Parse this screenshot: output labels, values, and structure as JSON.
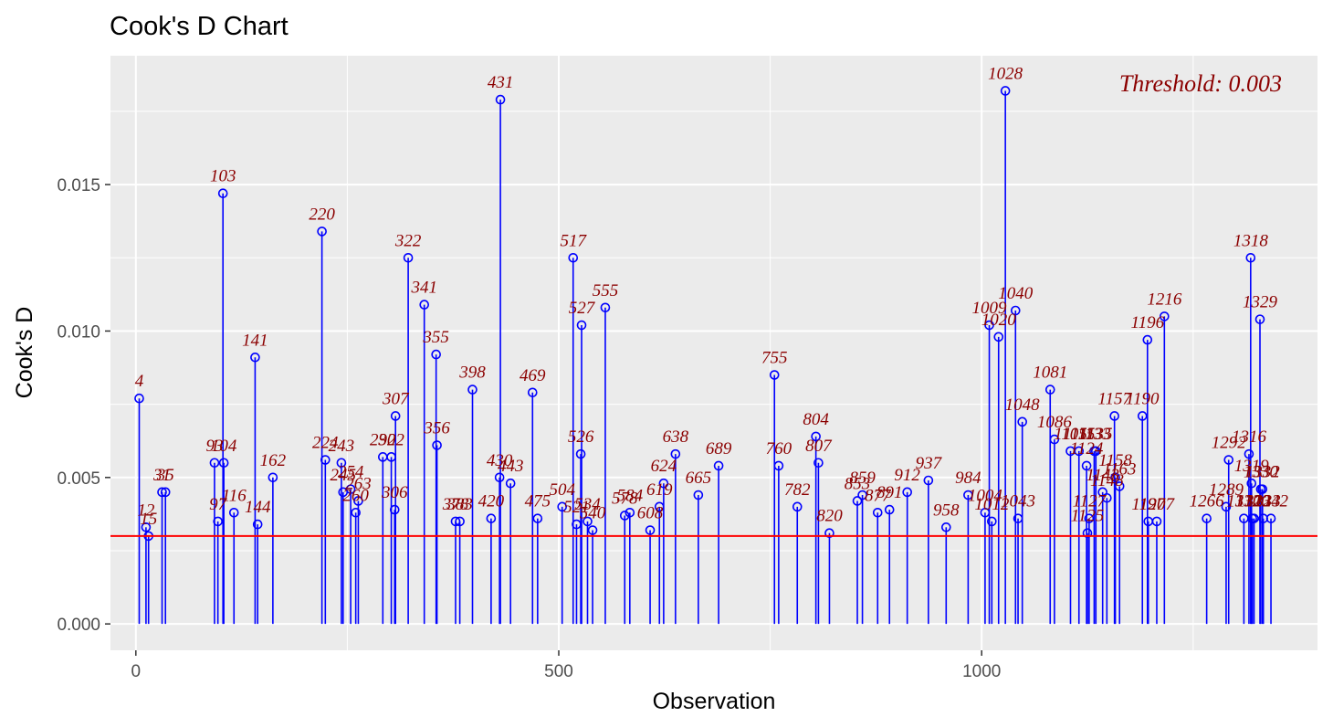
{
  "chart_data": {
    "type": "scatter",
    "title": "Cook's D Chart",
    "xlabel": "Observation",
    "ylabel": "Cook's D",
    "xlim": [
      -30,
      1397
    ],
    "ylim": [
      -0.0009,
      0.0194
    ],
    "x_ticks": [
      0,
      500,
      1000
    ],
    "x_tick_labels": [
      "0",
      "500",
      "1000"
    ],
    "y_ticks": [
      0,
      0.005,
      0.01,
      0.015
    ],
    "y_tick_labels": [
      "0.000",
      "0.005",
      "0.010",
      "0.015"
    ],
    "grid": true,
    "legend": "none",
    "threshold": 0.003,
    "threshold_label": "Threshold: 0.003",
    "colors": {
      "stem": "#0000ff",
      "threshold": "#ff0000",
      "label": "#8b0000",
      "panel": "#ebebeb",
      "grid": "#ffffff"
    },
    "labeled_points": [
      {
        "x": 4,
        "y": 0.0077,
        "label": "4"
      },
      {
        "x": 12,
        "y": 0.0033,
        "label": "12"
      },
      {
        "x": 15,
        "y": 0.003,
        "label": "15"
      },
      {
        "x": 31,
        "y": 0.0045,
        "label": "31"
      },
      {
        "x": 35,
        "y": 0.0045,
        "label": "35"
      },
      {
        "x": 93,
        "y": 0.0055,
        "label": "93"
      },
      {
        "x": 97,
        "y": 0.0035,
        "label": "97"
      },
      {
        "x": 103,
        "y": 0.0147,
        "label": "103"
      },
      {
        "x": 104,
        "y": 0.0055,
        "label": "104"
      },
      {
        "x": 116,
        "y": 0.0038,
        "label": "116"
      },
      {
        "x": 141,
        "y": 0.0091,
        "label": "141"
      },
      {
        "x": 144,
        "y": 0.0034,
        "label": "144"
      },
      {
        "x": 162,
        "y": 0.005,
        "label": "162"
      },
      {
        "x": 220,
        "y": 0.0134,
        "label": "220"
      },
      {
        "x": 224,
        "y": 0.0056,
        "label": "224"
      },
      {
        "x": 243,
        "y": 0.0055,
        "label": "243"
      },
      {
        "x": 245,
        "y": 0.0045,
        "label": "245"
      },
      {
        "x": 254,
        "y": 0.0046,
        "label": "254"
      },
      {
        "x": 263,
        "y": 0.0042,
        "label": "263"
      },
      {
        "x": 260,
        "y": 0.0038,
        "label": "260"
      },
      {
        "x": 292,
        "y": 0.0057,
        "label": "292"
      },
      {
        "x": 302,
        "y": 0.0057,
        "label": "302"
      },
      {
        "x": 306,
        "y": 0.0039,
        "label": "306"
      },
      {
        "x": 307,
        "y": 0.0071,
        "label": "307"
      },
      {
        "x": 322,
        "y": 0.0125,
        "label": "322"
      },
      {
        "x": 341,
        "y": 0.0109,
        "label": "341"
      },
      {
        "x": 355,
        "y": 0.0092,
        "label": "355"
      },
      {
        "x": 356,
        "y": 0.0061,
        "label": "356"
      },
      {
        "x": 378,
        "y": 0.0035,
        "label": "378"
      },
      {
        "x": 383,
        "y": 0.0035,
        "label": "383"
      },
      {
        "x": 398,
        "y": 0.008,
        "label": "398"
      },
      {
        "x": 420,
        "y": 0.0036,
        "label": "420"
      },
      {
        "x": 430,
        "y": 0.005,
        "label": "430"
      },
      {
        "x": 431,
        "y": 0.0179,
        "label": "431"
      },
      {
        "x": 443,
        "y": 0.0048,
        "label": "443"
      },
      {
        "x": 469,
        "y": 0.0079,
        "label": "469"
      },
      {
        "x": 475,
        "y": 0.0036,
        "label": "475"
      },
      {
        "x": 504,
        "y": 0.004,
        "label": "504"
      },
      {
        "x": 517,
        "y": 0.0125,
        "label": "517"
      },
      {
        "x": 521,
        "y": 0.0034,
        "label": "521"
      },
      {
        "x": 526,
        "y": 0.0058,
        "label": "526"
      },
      {
        "x": 527,
        "y": 0.0102,
        "label": "527"
      },
      {
        "x": 534,
        "y": 0.0035,
        "label": "534"
      },
      {
        "x": 540,
        "y": 0.0032,
        "label": "540"
      },
      {
        "x": 555,
        "y": 0.0108,
        "label": "555"
      },
      {
        "x": 578,
        "y": 0.0037,
        "label": "578"
      },
      {
        "x": 584,
        "y": 0.0038,
        "label": "584"
      },
      {
        "x": 608,
        "y": 0.0032,
        "label": "608"
      },
      {
        "x": 619,
        "y": 0.004,
        "label": "619"
      },
      {
        "x": 624,
        "y": 0.0048,
        "label": "624"
      },
      {
        "x": 638,
        "y": 0.0058,
        "label": "638"
      },
      {
        "x": 665,
        "y": 0.0044,
        "label": "665"
      },
      {
        "x": 689,
        "y": 0.0054,
        "label": "689"
      },
      {
        "x": 755,
        "y": 0.0085,
        "label": "755"
      },
      {
        "x": 760,
        "y": 0.0054,
        "label": "760"
      },
      {
        "x": 782,
        "y": 0.004,
        "label": "782"
      },
      {
        "x": 804,
        "y": 0.0064,
        "label": "804"
      },
      {
        "x": 807,
        "y": 0.0055,
        "label": "807"
      },
      {
        "x": 820,
        "y": 0.0031,
        "label": "820"
      },
      {
        "x": 853,
        "y": 0.0042,
        "label": "853"
      },
      {
        "x": 859,
        "y": 0.0044,
        "label": "859"
      },
      {
        "x": 877,
        "y": 0.0038,
        "label": "877"
      },
      {
        "x": 891,
        "y": 0.0039,
        "label": "891"
      },
      {
        "x": 912,
        "y": 0.0045,
        "label": "912"
      },
      {
        "x": 937,
        "y": 0.0049,
        "label": "937"
      },
      {
        "x": 958,
        "y": 0.0033,
        "label": "958"
      },
      {
        "x": 984,
        "y": 0.0044,
        "label": "984"
      },
      {
        "x": 1004,
        "y": 0.0038,
        "label": "1004"
      },
      {
        "x": 1009,
        "y": 0.0102,
        "label": "1009"
      },
      {
        "x": 1012,
        "y": 0.0035,
        "label": "1012"
      },
      {
        "x": 1020,
        "y": 0.0098,
        "label": "1020"
      },
      {
        "x": 1028,
        "y": 0.0182,
        "label": "1028"
      },
      {
        "x": 1040,
        "y": 0.0107,
        "label": "1040"
      },
      {
        "x": 1043,
        "y": 0.0036,
        "label": "1043"
      },
      {
        "x": 1048,
        "y": 0.0069,
        "label": "1048"
      },
      {
        "x": 1081,
        "y": 0.008,
        "label": "1081"
      },
      {
        "x": 1086,
        "y": 0.0063,
        "label": "1086"
      },
      {
        "x": 1105,
        "y": 0.0059,
        "label": "1105"
      },
      {
        "x": 1115,
        "y": 0.0059,
        "label": "1115"
      },
      {
        "x": 1124,
        "y": 0.0054,
        "label": "1124"
      },
      {
        "x": 1125,
        "y": 0.0031,
        "label": "1125"
      },
      {
        "x": 1127,
        "y": 0.0036,
        "label": "1127"
      },
      {
        "x": 1133,
        "y": 0.0059,
        "label": "1133"
      },
      {
        "x": 1135,
        "y": 0.0059,
        "label": "1135"
      },
      {
        "x": 1143,
        "y": 0.0045,
        "label": "1143"
      },
      {
        "x": 1148,
        "y": 0.0043,
        "label": "1148"
      },
      {
        "x": 1157,
        "y": 0.0071,
        "label": "1157"
      },
      {
        "x": 1158,
        "y": 0.005,
        "label": "1158"
      },
      {
        "x": 1163,
        "y": 0.0047,
        "label": "1163"
      },
      {
        "x": 1190,
        "y": 0.0071,
        "label": "1190"
      },
      {
        "x": 1196,
        "y": 0.0097,
        "label": "1196"
      },
      {
        "x": 1197,
        "y": 0.0035,
        "label": "1197"
      },
      {
        "x": 1207,
        "y": 0.0035,
        "label": "1207"
      },
      {
        "x": 1216,
        "y": 0.0105,
        "label": "1216"
      },
      {
        "x": 1266,
        "y": 0.0036,
        "label": "1266"
      },
      {
        "x": 1289,
        "y": 0.004,
        "label": "1289"
      },
      {
        "x": 1292,
        "y": 0.0056,
        "label": "1292"
      },
      {
        "x": 1310,
        "y": 0.0036,
        "label": "1310"
      },
      {
        "x": 1316,
        "y": 0.0058,
        "label": "1316"
      },
      {
        "x": 1318,
        "y": 0.0125,
        "label": "1318"
      },
      {
        "x": 1319,
        "y": 0.0048,
        "label": "1319"
      },
      {
        "x": 1320,
        "y": 0.0036,
        "label": "1320"
      },
      {
        "x": 1322,
        "y": 0.0036,
        "label": "1322"
      },
      {
        "x": 1329,
        "y": 0.0104,
        "label": "1329"
      },
      {
        "x": 1330,
        "y": 0.0046,
        "label": "1330"
      },
      {
        "x": 1332,
        "y": 0.0046,
        "label": "1332"
      },
      {
        "x": 1333,
        "y": 0.0036,
        "label": "1333"
      },
      {
        "x": 1342,
        "y": 0.0036,
        "label": "1342"
      }
    ]
  }
}
